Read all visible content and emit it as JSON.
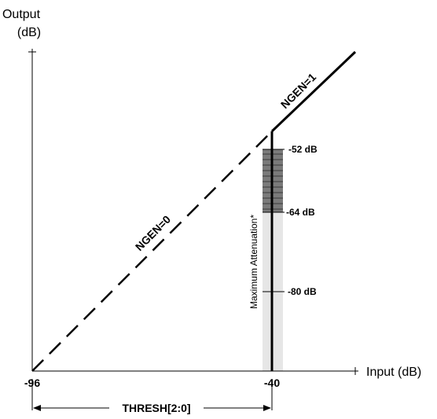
{
  "axes": {
    "y_label_line1": "Output",
    "y_label_line2": "(dB)",
    "x_label": "Input (dB)"
  },
  "x_ticks": {
    "left": "-96",
    "right": "-40"
  },
  "curves": {
    "ngen0": {
      "label": "NGEN=0",
      "style": "dashed"
    },
    "ngen1": {
      "label": "NGEN=1",
      "style": "solid"
    }
  },
  "attenuation": {
    "label": "Maximum Attenuation*",
    "levels": [
      "-52 dB",
      "-64 dB",
      "-80 dB"
    ]
  },
  "thresh": {
    "label": "THRESH[2:0]"
  },
  "colors": {
    "line": "#000000",
    "band_light": "#e6e6e6",
    "band_dark": "#7a7a7a"
  }
}
